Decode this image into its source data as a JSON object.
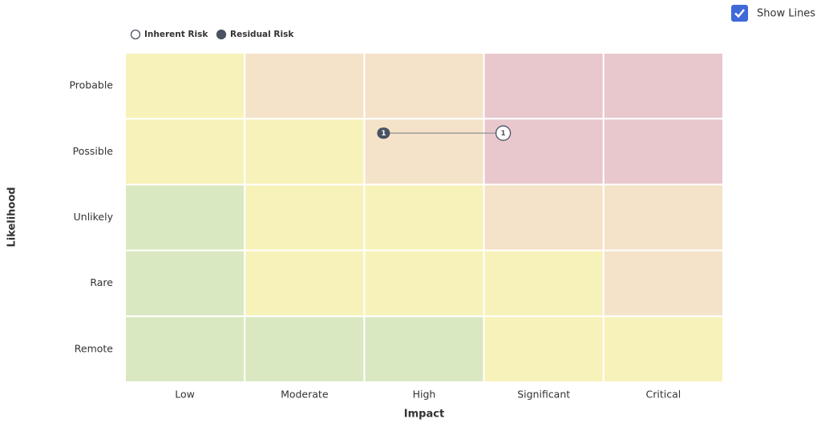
{
  "toggle": {
    "label": "Show Lines",
    "checked": true
  },
  "legend": [
    {
      "label": "Inherent Risk",
      "style": "hollow"
    },
    {
      "label": "Residual Risk",
      "style": "filled"
    }
  ],
  "matrix": {
    "x_label": "Impact",
    "y_label": "Likelihood",
    "columns": [
      "Low",
      "Moderate",
      "High",
      "Significant",
      "Critical"
    ],
    "rows": [
      "Probable",
      "Possible",
      "Unlikely",
      "Rare",
      "Remote"
    ],
    "colors": [
      [
        "#f7f2b9",
        "#f4e2c9",
        "#f4e2c9",
        "#e8c7cd",
        "#e8c7cd"
      ],
      [
        "#f7f2b9",
        "#f7f2b9",
        "#f4e2c9",
        "#e8c7cd",
        "#e8c7cd"
      ],
      [
        "#d9e8c1",
        "#f7f2b9",
        "#f7f2b9",
        "#f4e2c9",
        "#f4e2c9"
      ],
      [
        "#d9e8c1",
        "#f7f2b9",
        "#f7f2b9",
        "#f7f2b9",
        "#f4e2c9"
      ],
      [
        "#d9e8c1",
        "#d9e8c1",
        "#d9e8c1",
        "#f7f2b9",
        "#f7f2b9"
      ]
    ]
  },
  "markers": [
    {
      "label": "1",
      "style": "filled",
      "impact": "High",
      "likelihood": "Possible"
    },
    {
      "label": "1",
      "style": "hollow",
      "impact": "Significant",
      "likelihood": "Possible"
    }
  ]
}
